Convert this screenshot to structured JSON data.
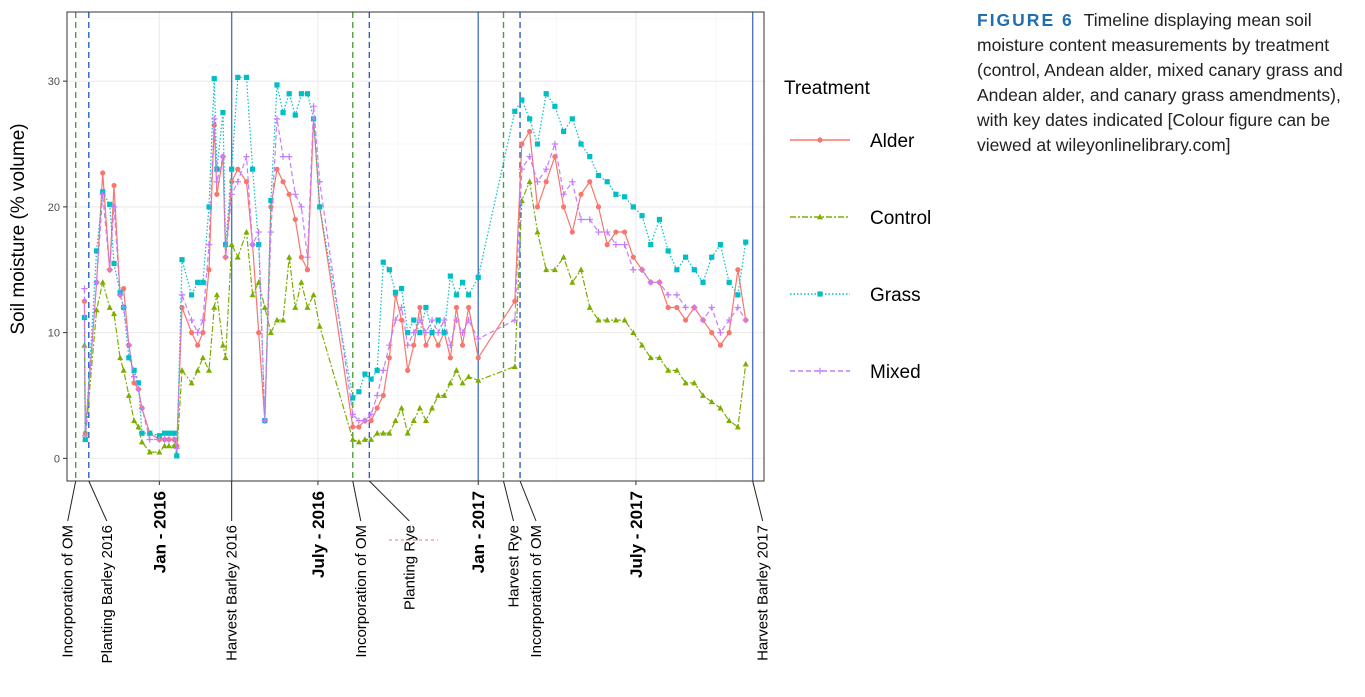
{
  "caption": {
    "label": "FIGURE 6",
    "text": "Timeline displaying mean soil moisture content measurements by treatment (control, Andean alder, mixed canary grass and Andean alder, and canary grass amendments), with key dates indicated [Colour figure can be viewed at wileyonlinelibrary.com]"
  },
  "chart_data": {
    "type": "line",
    "title": "",
    "ylabel": "Soil moisture (% volume)",
    "xlabel": "",
    "ylim": [
      -1.8,
      35.5
    ],
    "yticks": [
      0,
      10,
      20,
      30
    ],
    "xlim": [
      "2015-09-17",
      "2017-11-25"
    ],
    "grid": true,
    "legend": {
      "title": "Treatment",
      "placement": "right",
      "entries": [
        "Alder",
        "Control",
        "Grass",
        "Mixed"
      ]
    },
    "month_ticks": [
      {
        "date": "2016-01-01",
        "label": "Jan - 2016"
      },
      {
        "date": "2016-07-01",
        "label": "July - 2016"
      },
      {
        "date": "2017-01-01",
        "label": "Jan - 2017"
      },
      {
        "date": "2017-07-01",
        "label": "July - 2017"
      }
    ],
    "events": [
      {
        "date": "2015-09-27",
        "label": "Incorporation of OM",
        "style": "green-dashed"
      },
      {
        "date": "2015-10-12",
        "label": "Planting Barley 2016",
        "style": "blue-dashed"
      },
      {
        "date": "2016-03-24",
        "label": "Harvest Barley 2016",
        "style": "blue-solid"
      },
      {
        "date": "2016-08-10",
        "label": "Incorporation of OM",
        "style": "green-dashed"
      },
      {
        "date": "2016-08-29",
        "label": "Planting Rye",
        "style": "blue-dashed"
      },
      {
        "date": "2017-01-01",
        "label": "",
        "style": "blue-solid"
      },
      {
        "date": "2017-01-30",
        "label": "Harvest Rye",
        "style": "green-dashed"
      },
      {
        "date": "2017-02-18",
        "label": "Incorporation of OM",
        "style": "blue-dashed"
      },
      {
        "date": "2017-11-12",
        "label": "Harvest Barley 2017",
        "style": "blue-solid"
      }
    ],
    "series": [
      {
        "name": "Alder",
        "color": "#f8766d",
        "marker": "circle",
        "x": [
          "2015-10-07",
          "2015-10-08",
          "2015-10-21",
          "2015-10-28",
          "2015-11-05",
          "2015-11-10",
          "2015-11-17",
          "2015-11-21",
          "2015-11-27",
          "2015-12-03",
          "2015-12-08",
          "2015-12-12",
          "2015-12-21",
          "2016-01-01",
          "2016-01-07",
          "2016-01-12",
          "2016-01-18",
          "2016-01-21",
          "2016-01-27",
          "2016-02-07",
          "2016-02-14",
          "2016-02-20",
          "2016-02-27",
          "2016-03-04",
          "2016-03-07",
          "2016-03-14",
          "2016-03-17",
          "2016-03-24",
          "2016-03-31",
          "2016-04-10",
          "2016-04-17",
          "2016-04-24",
          "2016-05-01",
          "2016-05-08",
          "2016-05-15",
          "2016-05-22",
          "2016-05-29",
          "2016-06-05",
          "2016-06-12",
          "2016-06-19",
          "2016-06-26",
          "2016-07-03",
          "2016-08-10",
          "2016-08-17",
          "2016-08-24",
          "2016-08-31",
          "2016-09-07",
          "2016-09-14",
          "2016-09-21",
          "2016-09-28",
          "2016-10-05",
          "2016-10-12",
          "2016-10-19",
          "2016-10-26",
          "2016-11-02",
          "2016-11-09",
          "2016-11-16",
          "2016-11-23",
          "2016-11-30",
          "2016-12-07",
          "2016-12-14",
          "2016-12-21",
          "2017-01-01",
          "2017-02-12",
          "2017-02-20",
          "2017-03-01",
          "2017-03-10",
          "2017-03-20",
          "2017-03-30",
          "2017-04-09",
          "2017-04-19",
          "2017-04-29",
          "2017-05-09",
          "2017-05-19",
          "2017-05-29",
          "2017-06-08",
          "2017-06-18",
          "2017-06-28",
          "2017-07-08",
          "2017-07-18",
          "2017-07-28",
          "2017-08-07",
          "2017-08-17",
          "2017-08-27",
          "2017-09-06",
          "2017-09-16",
          "2017-09-26",
          "2017-10-06",
          "2017-10-16",
          "2017-10-26",
          "2017-11-04"
        ],
        "y": [
          12.5,
          2,
          14,
          22.7,
          15,
          21.7,
          13,
          13.5,
          9,
          6,
          5.5,
          4,
          2,
          1.5,
          1.5,
          1.5,
          1.5,
          1,
          12,
          10,
          9,
          10,
          15,
          26.5,
          21,
          24,
          16,
          22,
          23,
          22,
          17,
          10,
          3,
          20,
          23,
          22,
          21,
          19,
          16,
          15,
          27,
          20,
          2.5,
          2.5,
          3,
          3,
          4,
          5,
          8,
          13,
          11,
          7,
          9,
          12,
          9,
          10,
          9,
          10,
          8,
          12,
          9,
          12,
          8,
          12.5,
          25,
          26,
          20,
          22,
          24,
          20,
          18,
          21,
          22,
          20,
          17,
          18,
          18,
          16,
          15,
          14,
          14,
          12,
          12,
          11,
          12,
          11,
          10,
          9,
          10,
          15,
          11
        ]
      },
      {
        "name": "Control",
        "color": "#7cae00",
        "marker": "triangle",
        "x": [
          "2015-10-07",
          "2015-10-08",
          "2015-10-21",
          "2015-10-28",
          "2015-11-05",
          "2015-11-10",
          "2015-11-17",
          "2015-11-21",
          "2015-11-27",
          "2015-12-03",
          "2015-12-08",
          "2015-12-12",
          "2015-12-21",
          "2016-01-01",
          "2016-01-07",
          "2016-01-12",
          "2016-01-18",
          "2016-01-21",
          "2016-01-27",
          "2016-02-07",
          "2016-02-14",
          "2016-02-20",
          "2016-02-27",
          "2016-03-04",
          "2016-03-07",
          "2016-03-14",
          "2016-03-17",
          "2016-03-24",
          "2016-03-31",
          "2016-04-10",
          "2016-04-17",
          "2016-04-24",
          "2016-05-01",
          "2016-05-08",
          "2016-05-15",
          "2016-05-22",
          "2016-05-29",
          "2016-06-05",
          "2016-06-12",
          "2016-06-19",
          "2016-06-26",
          "2016-07-03",
          "2016-08-10",
          "2016-08-17",
          "2016-08-24",
          "2016-08-31",
          "2016-09-07",
          "2016-09-14",
          "2016-09-21",
          "2016-09-28",
          "2016-10-05",
          "2016-10-12",
          "2016-10-19",
          "2016-10-26",
          "2016-11-02",
          "2016-11-09",
          "2016-11-16",
          "2016-11-23",
          "2016-11-30",
          "2016-12-07",
          "2016-12-14",
          "2016-12-21",
          "2017-01-01",
          "2017-02-12",
          "2017-02-20",
          "2017-03-01",
          "2017-03-10",
          "2017-03-20",
          "2017-03-30",
          "2017-04-09",
          "2017-04-19",
          "2017-04-29",
          "2017-05-09",
          "2017-05-19",
          "2017-05-29",
          "2017-06-08",
          "2017-06-18",
          "2017-06-28",
          "2017-07-08",
          "2017-07-18",
          "2017-07-28",
          "2017-08-07",
          "2017-08-17",
          "2017-08-27",
          "2017-09-06",
          "2017-09-16",
          "2017-09-26",
          "2017-10-06",
          "2017-10-16",
          "2017-10-26",
          "2017-11-04"
        ],
        "y": [
          9,
          1.5,
          11.8,
          14,
          12,
          11.5,
          8,
          7,
          5,
          3,
          2.5,
          1.3,
          0.5,
          0.5,
          1,
          1,
          1,
          0.3,
          7,
          6,
          7,
          8,
          7,
          12,
          13,
          9,
          8,
          17,
          16,
          18,
          13,
          14,
          12,
          10,
          11,
          11,
          16,
          12,
          14,
          12,
          13,
          10.5,
          1.5,
          1.3,
          1.5,
          1.5,
          2,
          2,
          2,
          3,
          4,
          2,
          3,
          4,
          3,
          4,
          5,
          5,
          6,
          7,
          6,
          6.5,
          6.2,
          7.3,
          20.5,
          22,
          18,
          15,
          15,
          16,
          14,
          15,
          12,
          11,
          11,
          11,
          11,
          10,
          9,
          8,
          8,
          7,
          7,
          6,
          6,
          5,
          4.5,
          4,
          3,
          2.5,
          7.5
        ]
      },
      {
        "name": "Grass",
        "color": "#00bfc4",
        "marker": "square",
        "x": [
          "2015-10-07",
          "2015-10-08",
          "2015-10-21",
          "2015-10-28",
          "2015-11-05",
          "2015-11-10",
          "2015-11-17",
          "2015-11-21",
          "2015-11-27",
          "2015-12-03",
          "2015-12-08",
          "2015-12-12",
          "2015-12-21",
          "2016-01-01",
          "2016-01-07",
          "2016-01-12",
          "2016-01-18",
          "2016-01-21",
          "2016-01-27",
          "2016-02-07",
          "2016-02-14",
          "2016-02-20",
          "2016-02-27",
          "2016-03-04",
          "2016-03-07",
          "2016-03-14",
          "2016-03-17",
          "2016-03-24",
          "2016-03-31",
          "2016-04-10",
          "2016-04-17",
          "2016-04-24",
          "2016-05-01",
          "2016-05-08",
          "2016-05-15",
          "2016-05-22",
          "2016-05-29",
          "2016-06-05",
          "2016-06-12",
          "2016-06-19",
          "2016-06-26",
          "2016-07-03",
          "2016-08-10",
          "2016-08-17",
          "2016-08-24",
          "2016-08-31",
          "2016-09-07",
          "2016-09-14",
          "2016-09-21",
          "2016-09-28",
          "2016-10-05",
          "2016-10-12",
          "2016-10-19",
          "2016-10-26",
          "2016-11-02",
          "2016-11-09",
          "2016-11-16",
          "2016-11-23",
          "2016-11-30",
          "2016-12-07",
          "2016-12-14",
          "2016-12-21",
          "2017-01-01",
          "2017-02-12",
          "2017-02-20",
          "2017-03-01",
          "2017-03-10",
          "2017-03-20",
          "2017-03-30",
          "2017-04-09",
          "2017-04-19",
          "2017-04-29",
          "2017-05-09",
          "2017-05-19",
          "2017-05-29",
          "2017-06-08",
          "2017-06-18",
          "2017-06-28",
          "2017-07-08",
          "2017-07-18",
          "2017-07-28",
          "2017-08-07",
          "2017-08-17",
          "2017-08-27",
          "2017-09-06",
          "2017-09-16",
          "2017-09-26",
          "2017-10-06",
          "2017-10-16",
          "2017-10-26",
          "2017-11-04"
        ],
        "y": [
          11.2,
          1.5,
          16.5,
          21.2,
          20.2,
          15.5,
          13.2,
          12,
          8,
          7,
          6,
          2,
          2,
          1.8,
          2,
          2,
          2,
          0.2,
          15.8,
          13,
          14,
          14,
          20,
          30.2,
          23,
          27.5,
          17,
          23,
          30.3,
          30.3,
          23,
          17,
          3,
          20.5,
          29.7,
          27.5,
          29,
          27.3,
          29,
          29,
          27,
          20,
          4.8,
          5.3,
          6.7,
          6.3,
          7,
          15.6,
          15,
          13.2,
          13.5,
          10,
          11,
          10,
          12,
          10,
          11,
          10,
          14.5,
          13,
          14,
          13,
          14.4,
          27.6,
          28.5,
          27,
          25,
          29,
          28,
          26,
          27,
          25,
          24,
          22.5,
          22,
          21,
          20.8,
          20,
          19.3,
          17,
          19,
          16.5,
          15,
          16,
          15,
          14,
          16,
          17,
          14,
          13,
          17.2
        ]
      },
      {
        "name": "Mixed",
        "color": "#c77cff",
        "marker": "plus",
        "x": [
          "2015-10-07",
          "2015-10-08",
          "2015-10-21",
          "2015-10-28",
          "2015-11-05",
          "2015-11-10",
          "2015-11-17",
          "2015-11-21",
          "2015-11-27",
          "2015-12-03",
          "2015-12-08",
          "2015-12-12",
          "2015-12-21",
          "2016-01-01",
          "2016-01-07",
          "2016-01-12",
          "2016-01-18",
          "2016-01-21",
          "2016-01-27",
          "2016-02-07",
          "2016-02-14",
          "2016-02-20",
          "2016-02-27",
          "2016-03-04",
          "2016-03-07",
          "2016-03-14",
          "2016-03-17",
          "2016-03-24",
          "2016-03-31",
          "2016-04-10",
          "2016-04-17",
          "2016-04-24",
          "2016-05-01",
          "2016-05-08",
          "2016-05-15",
          "2016-05-22",
          "2016-05-29",
          "2016-06-05",
          "2016-06-12",
          "2016-06-19",
          "2016-06-26",
          "2016-07-03",
          "2016-08-10",
          "2016-08-17",
          "2016-08-24",
          "2016-08-31",
          "2016-09-07",
          "2016-09-14",
          "2016-09-21",
          "2016-09-28",
          "2016-10-05",
          "2016-10-12",
          "2016-10-19",
          "2016-10-26",
          "2016-11-02",
          "2016-11-09",
          "2016-11-16",
          "2016-11-23",
          "2016-11-30",
          "2016-12-07",
          "2016-12-14",
          "2016-12-21",
          "2017-01-01",
          "2017-02-12",
          "2017-02-20",
          "2017-03-01",
          "2017-03-10",
          "2017-03-20",
          "2017-03-30",
          "2017-04-09",
          "2017-04-19",
          "2017-04-29",
          "2017-05-09",
          "2017-05-19",
          "2017-05-29",
          "2017-06-08",
          "2017-06-18",
          "2017-06-28",
          "2017-07-08",
          "2017-07-18",
          "2017-07-28",
          "2017-08-07",
          "2017-08-17",
          "2017-08-27",
          "2017-09-06",
          "2017-09-16",
          "2017-09-26",
          "2017-10-06",
          "2017-10-16",
          "2017-10-26",
          "2017-11-04"
        ],
        "y": [
          13.5,
          1.8,
          14,
          21,
          15,
          20,
          13,
          12,
          9,
          6.5,
          5.5,
          4,
          1.5,
          1.5,
          1.5,
          1.5,
          1.5,
          0.8,
          13,
          11,
          10,
          11,
          17,
          27,
          22,
          24,
          16,
          21,
          22,
          24,
          17,
          18,
          3,
          18,
          27,
          24,
          24,
          21,
          20,
          16,
          28,
          22,
          3.5,
          3,
          3,
          3.5,
          5,
          7,
          9,
          11,
          12,
          9,
          10,
          11,
          10,
          11,
          10,
          11,
          9,
          11,
          10,
          11,
          9.5,
          11,
          23,
          24,
          22,
          23,
          25,
          21,
          22,
          19,
          19,
          18,
          18,
          17,
          17,
          15,
          15,
          14,
          14,
          13,
          13,
          12,
          12,
          11,
          12,
          10,
          11,
          12,
          11
        ]
      }
    ]
  }
}
